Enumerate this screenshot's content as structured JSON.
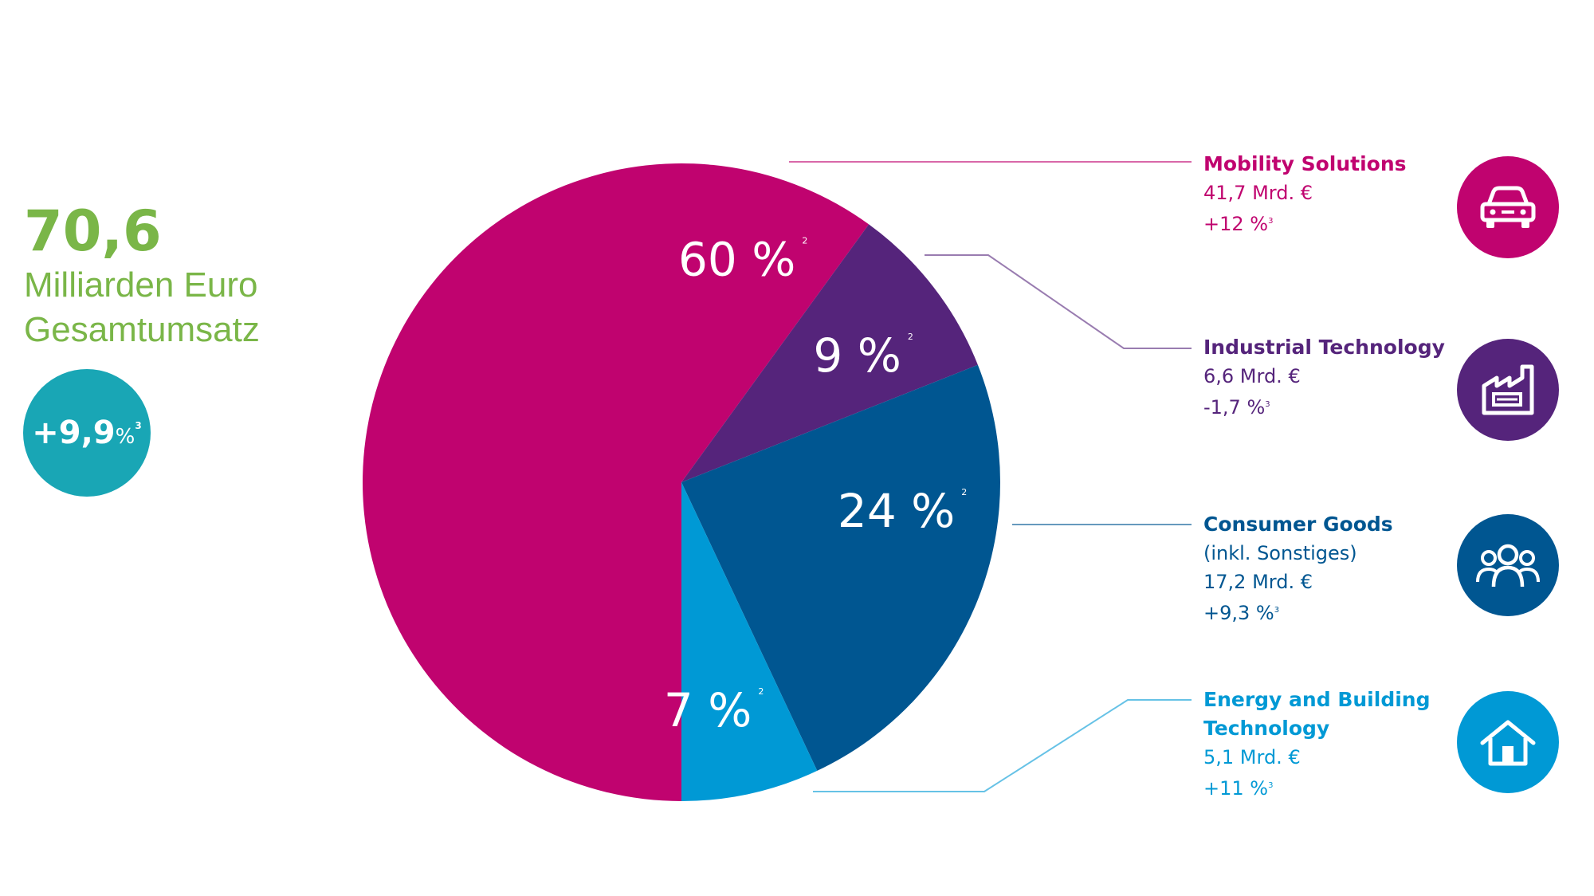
{
  "total": {
    "value": "70,6",
    "line1": "Milliarden Euro",
    "line2": "Gesamtumsatz",
    "color": "#7ab648"
  },
  "growth": {
    "value": "+9,9",
    "unit": "%",
    "note": "3",
    "color": "#19a6b5"
  },
  "chart_data": {
    "type": "pie",
    "labels": [
      "Mobility Solutions",
      "Industrial Technology",
      "Consumer Goods",
      "Energy and Building Technology"
    ],
    "values": [
      60,
      9,
      24,
      7
    ],
    "slice_labels": [
      "60 %",
      "9 %",
      "24 %",
      "7 %"
    ],
    "note_marker": "2",
    "colors": [
      "#c0036f",
      "#55247b",
      "#005691",
      "#0099d5"
    ]
  },
  "segments": [
    {
      "name_lines": [
        "Mobility Solutions"
      ],
      "extra": "",
      "revenue": "41,7 Mrd. €",
      "growth": "+12 %",
      "note": "3",
      "color": "#c0036f",
      "icon": "car-icon"
    },
    {
      "name_lines": [
        "Industrial Technology"
      ],
      "extra": "",
      "revenue": "6,6 Mrd. €",
      "growth": "-1,7 %",
      "note": "3",
      "color": "#55247b",
      "icon": "factory-icon"
    },
    {
      "name_lines": [
        "Consumer Goods"
      ],
      "extra": "(inkl. Sonstiges)",
      "revenue": "17,2 Mrd. €",
      "growth": "+9,3 %",
      "note": "3",
      "color": "#005691",
      "icon": "people-icon"
    },
    {
      "name_lines": [
        "Energy and Building",
        "Technology"
      ],
      "extra": "",
      "revenue": "5,1 Mrd. €",
      "growth": "+11 %",
      "note": "3",
      "color": "#0099d5",
      "icon": "house-icon"
    }
  ]
}
